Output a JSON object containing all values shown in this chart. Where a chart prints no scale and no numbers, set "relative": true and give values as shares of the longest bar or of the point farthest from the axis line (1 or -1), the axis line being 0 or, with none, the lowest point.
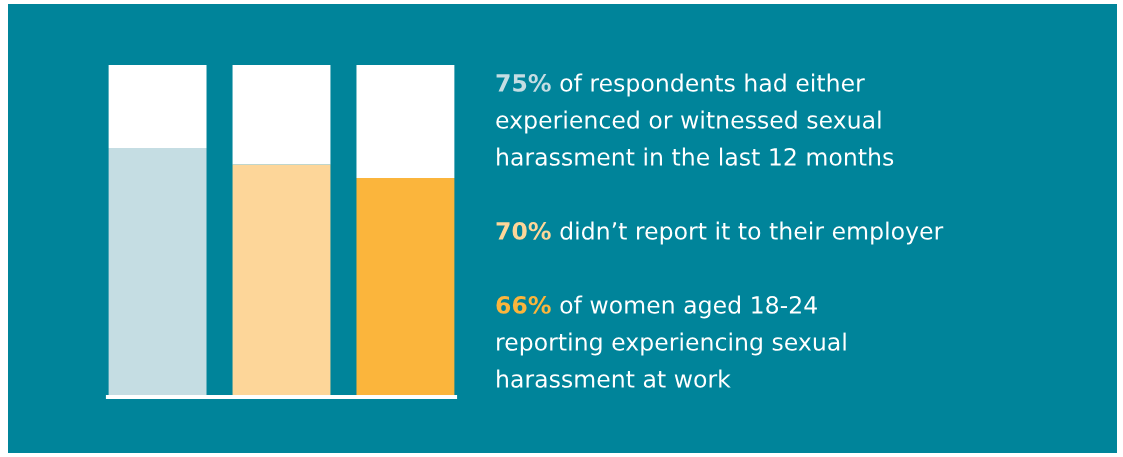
{
  "chart_data": {
    "type": "bar",
    "stacked": true,
    "relative": true,
    "categories": [
      null,
      null,
      null
    ],
    "series": [
      {
        "colors": [
          "#c5dde3",
          "#fdd699",
          "#fbb53c"
        ],
        "values": [
          0.75,
          0.7,
          0.66
        ]
      },
      {
        "color": "#ffffff",
        "values": [
          0.25,
          0.3,
          0.34
        ]
      }
    ],
    "annotations": [
      "75% of respondents had either\nexperienced or witnessed sexual\nharassment in the last 12 months",
      "70% didn’t report it to their employer",
      "66% of women aged 18-24\nreporting experiencing sexual\nharassment at work"
    ]
  }
}
